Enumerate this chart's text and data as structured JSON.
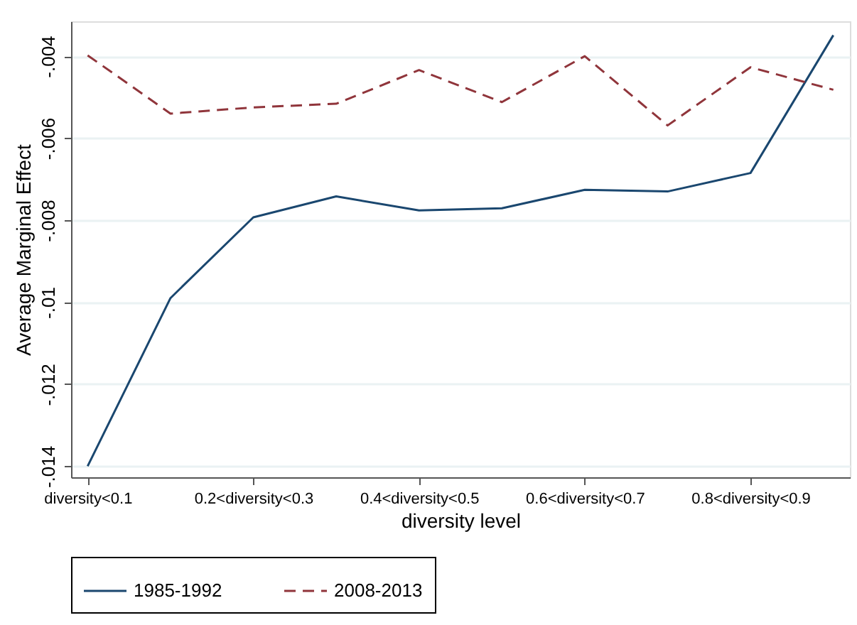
{
  "chart_data": {
    "type": "line",
    "xlabel": "diversity level",
    "ylabel": "Average Marginal Effect",
    "categories": [
      "diversity<0.1",
      null,
      "0.2<diversity<0.3",
      null,
      "0.4<diversity<0.5",
      null,
      "0.6<diversity<0.7",
      null,
      "0.8<diversity<0.9",
      null
    ],
    "series": [
      {
        "name": "1985-1992",
        "color": "#1a476f",
        "line_style": "solid",
        "values": [
          -0.014,
          -0.0099,
          -0.00793,
          -0.00742,
          -0.00776,
          -0.00771,
          -0.00726,
          -0.0073,
          -0.00685,
          -0.00349
        ]
      },
      {
        "name": "2008-2013",
        "color": "#90353b",
        "line_style": "dashed",
        "values": [
          -0.00398,
          -0.0054,
          -0.00525,
          -0.00516,
          -0.00434,
          -0.00512,
          -0.004,
          -0.00569,
          -0.00427,
          -0.00482
        ]
      }
    ],
    "ylim": [
      -0.01427,
      -0.00315
    ],
    "yticks": [
      {
        "value": -0.014,
        "label": "-.014"
      },
      {
        "value": -0.012,
        "label": "-.012"
      },
      {
        "value": -0.01,
        "label": "-.01"
      },
      {
        "value": -0.008,
        "label": "-.008"
      },
      {
        "value": -0.006,
        "label": "-.006"
      },
      {
        "value": -0.004,
        "label": "-.004"
      }
    ],
    "grid": "y",
    "legend": "bottom"
  }
}
